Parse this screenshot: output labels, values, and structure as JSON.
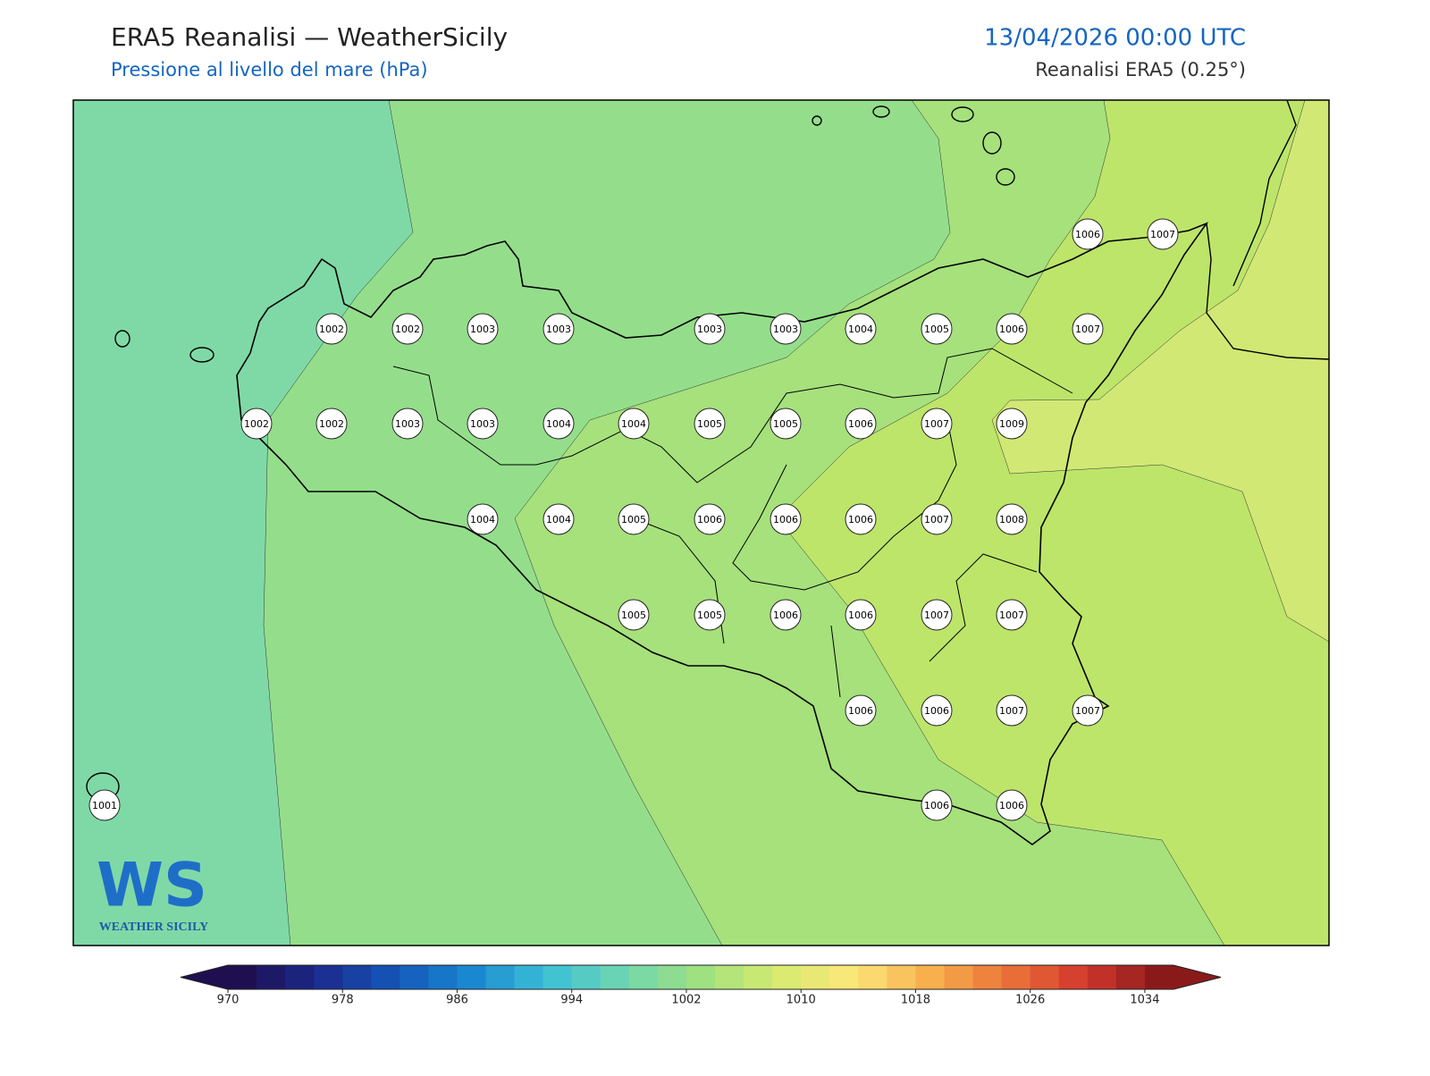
{
  "header": {
    "title": "ERA5 Reanalisi — WeatherSicily",
    "subtitle": "Pressione al livello del mare (hPa)",
    "date": "13/04/2026 00:00 UTC",
    "source": "Reanalisi ERA5 (0.25°)"
  },
  "map": {
    "station_labels": [
      "1006",
      "1007",
      "1002",
      "1002",
      "1003",
      "1003",
      "1003",
      "1003",
      "1004",
      "1005",
      "1006",
      "1007",
      "1002",
      "1002",
      "1003",
      "1003",
      "1004",
      "1004",
      "1005",
      "1005",
      "1006",
      "1007",
      "1009",
      "1004",
      "1004",
      "1005",
      "1006",
      "1006",
      "1006",
      "1007",
      "1008",
      "1005",
      "1005",
      "1006",
      "1006",
      "1007",
      "1007",
      "1006",
      "1006",
      "1007",
      "1007",
      "1001",
      "1006",
      "1006"
    ]
  },
  "logo": {
    "mark": "WS",
    "text": "WEATHER SICILY"
  },
  "colorbar": {
    "ticks": [
      970,
      978,
      986,
      994,
      1002,
      1010,
      1018,
      1026,
      1034
    ]
  }
}
